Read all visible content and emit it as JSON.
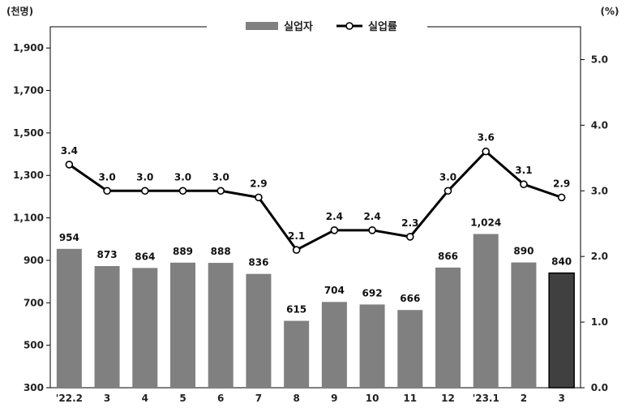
{
  "chart_data": {
    "type": "bar",
    "left_unit": "(천명)",
    "right_unit": "(%)",
    "categories": [
      "'22.2",
      "3",
      "4",
      "5",
      "6",
      "7",
      "8",
      "9",
      "10",
      "11",
      "12",
      "'23.1",
      "2",
      "3"
    ],
    "series": [
      {
        "name": "실업자",
        "type": "bar",
        "axis": "left",
        "values": [
          954,
          873,
          864,
          889,
          888,
          836,
          615,
          704,
          692,
          666,
          866,
          1024,
          890,
          840
        ],
        "labels": [
          "954",
          "873",
          "864",
          "889",
          "888",
          "836",
          "615",
          "704",
          "692",
          "666",
          "866",
          "1,024",
          "890",
          "840"
        ]
      },
      {
        "name": "실업률",
        "type": "line",
        "axis": "right",
        "values": [
          3.4,
          3.0,
          3.0,
          3.0,
          3.0,
          2.9,
          2.1,
          2.4,
          2.4,
          2.3,
          3.0,
          3.6,
          3.1,
          2.9
        ],
        "labels": [
          "3.4",
          "3.0",
          "3.0",
          "3.0",
          "3.0",
          "2.9",
          "2.1",
          "2.4",
          "2.4",
          "2.3",
          "3.0",
          "3.6",
          "3.1",
          "2.9"
        ]
      }
    ],
    "y_left": {
      "ylim": [
        300,
        2000
      ],
      "ticks": [
        300,
        500,
        700,
        900,
        1100,
        1300,
        1500,
        1700,
        1900
      ],
      "tick_labels": [
        "300",
        "500",
        "700",
        "900",
        "1,100",
        "1,300",
        "1,500",
        "1,700",
        "1,900"
      ]
    },
    "y_right": {
      "ylim": [
        0.0,
        5.5
      ],
      "ticks": [
        0.0,
        1.0,
        2.0,
        3.0,
        4.0,
        5.0
      ],
      "tick_labels": [
        "0.0",
        "1.0",
        "2.0",
        "3.0",
        "4.0",
        "5.0"
      ]
    },
    "highlight_index": 13,
    "grid": false,
    "legend_position": "top",
    "colors": {
      "bar": "#808080",
      "bar_highlight": "#404040",
      "line": "#000000",
      "marker_fill": "#ffffff"
    }
  }
}
